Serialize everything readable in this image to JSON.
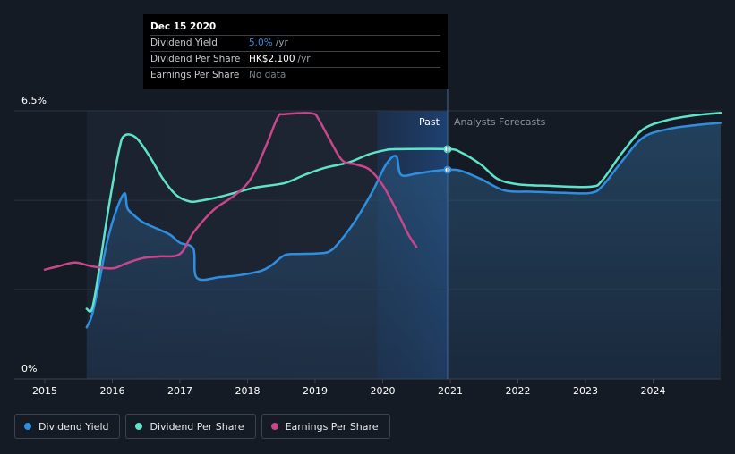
{
  "tooltip": {
    "date": "Dec 15 2020",
    "rows": [
      {
        "label": "Dividend Yield",
        "value": "5.0%",
        "unit": "/yr"
      },
      {
        "label": "Dividend Per Share",
        "value": "HK$2.100",
        "unit": "/yr"
      },
      {
        "label": "Earnings Per Share",
        "value": "No data",
        "unit": ""
      }
    ]
  },
  "legend": [
    {
      "label": "Dividend Yield",
      "color": "#2e8fe0"
    },
    {
      "label": "Dividend Per Share",
      "color": "#5fe3c8"
    },
    {
      "label": "Earnings Per Share",
      "color": "#c8468a"
    }
  ],
  "colors": {
    "background": "#151b24",
    "dividend_yield": "#2e8fe0",
    "dividend_per_share": "#5fe3c8",
    "earnings_per_share": "#c8468a"
  },
  "chart_data": {
    "type": "line",
    "title": "",
    "xlabel": "",
    "ylabel": "",
    "y_ticks": [
      {
        "value": 6.5,
        "label": "6.5%"
      },
      {
        "value": 0,
        "label": "0%"
      }
    ],
    "x_ticks": [
      "2015",
      "2016",
      "2017",
      "2018",
      "2019",
      "2020",
      "2021",
      "2022",
      "2023",
      "2024"
    ],
    "xlim": [
      2014.55,
      2025.0
    ],
    "ylim": [
      0,
      6.5
    ],
    "past_label": "Past",
    "forecast_label": "Analysts Forecasts",
    "past_end": 2020.96,
    "grid": true,
    "legend_position": "bottom-left",
    "series": [
      {
        "name": "Dividend Yield",
        "key": "dividend_yield",
        "fill": true,
        "points": [
          [
            2015.62,
            1.25
          ],
          [
            2015.7,
            1.55
          ],
          [
            2015.8,
            2.3
          ],
          [
            2015.92,
            3.3
          ],
          [
            2016.05,
            4.05
          ],
          [
            2016.18,
            4.5
          ],
          [
            2016.22,
            4.15
          ],
          [
            2016.3,
            4.0
          ],
          [
            2016.45,
            3.8
          ],
          [
            2016.65,
            3.65
          ],
          [
            2016.85,
            3.5
          ],
          [
            2017.0,
            3.3
          ],
          [
            2017.2,
            3.15
          ],
          [
            2017.25,
            2.45
          ],
          [
            2017.6,
            2.47
          ],
          [
            2017.9,
            2.52
          ],
          [
            2018.2,
            2.62
          ],
          [
            2018.35,
            2.75
          ],
          [
            2018.55,
            3.0
          ],
          [
            2018.75,
            3.03
          ],
          [
            2019.0,
            3.04
          ],
          [
            2019.2,
            3.08
          ],
          [
            2019.35,
            3.3
          ],
          [
            2019.6,
            3.85
          ],
          [
            2019.85,
            4.55
          ],
          [
            2020.05,
            5.2
          ],
          [
            2020.2,
            5.4
          ],
          [
            2020.27,
            4.95
          ],
          [
            2020.5,
            4.98
          ],
          [
            2020.75,
            5.04
          ],
          [
            2020.96,
            5.07
          ],
          [
            2021.15,
            5.05
          ],
          [
            2021.45,
            4.85
          ],
          [
            2021.8,
            4.57
          ],
          [
            2022.2,
            4.54
          ],
          [
            2022.7,
            4.51
          ],
          [
            2023.08,
            4.51
          ],
          [
            2023.25,
            4.68
          ],
          [
            2023.55,
            5.3
          ],
          [
            2023.85,
            5.85
          ],
          [
            2024.2,
            6.05
          ],
          [
            2024.6,
            6.15
          ],
          [
            2025.0,
            6.21
          ]
        ]
      },
      {
        "name": "Dividend Per Share",
        "key": "dividend_per_share",
        "fill": false,
        "points": [
          [
            2015.62,
            1.7
          ],
          [
            2015.7,
            1.7
          ],
          [
            2015.8,
            2.6
          ],
          [
            2015.95,
            4.2
          ],
          [
            2016.1,
            5.55
          ],
          [
            2016.18,
            5.9
          ],
          [
            2016.35,
            5.85
          ],
          [
            2016.55,
            5.4
          ],
          [
            2016.75,
            4.85
          ],
          [
            2016.95,
            4.45
          ],
          [
            2017.15,
            4.3
          ],
          [
            2017.3,
            4.32
          ],
          [
            2017.6,
            4.42
          ],
          [
            2017.9,
            4.55
          ],
          [
            2018.15,
            4.65
          ],
          [
            2018.55,
            4.75
          ],
          [
            2018.85,
            4.95
          ],
          [
            2019.15,
            5.12
          ],
          [
            2019.5,
            5.25
          ],
          [
            2019.8,
            5.45
          ],
          [
            2020.05,
            5.55
          ],
          [
            2020.2,
            5.57
          ],
          [
            2020.96,
            5.57
          ],
          [
            2021.15,
            5.5
          ],
          [
            2021.45,
            5.2
          ],
          [
            2021.7,
            4.85
          ],
          [
            2022.0,
            4.72
          ],
          [
            2022.5,
            4.68
          ],
          [
            2023.08,
            4.66
          ],
          [
            2023.25,
            4.82
          ],
          [
            2023.55,
            5.5
          ],
          [
            2023.85,
            6.05
          ],
          [
            2024.2,
            6.27
          ],
          [
            2024.6,
            6.39
          ],
          [
            2025.0,
            6.45
          ]
        ]
      },
      {
        "name": "Earnings Per Share",
        "key": "earnings_per_share",
        "fill": false,
        "points": [
          [
            2015.0,
            2.65
          ],
          [
            2015.2,
            2.73
          ],
          [
            2015.45,
            2.82
          ],
          [
            2015.7,
            2.73
          ],
          [
            2016.0,
            2.68
          ],
          [
            2016.2,
            2.8
          ],
          [
            2016.45,
            2.93
          ],
          [
            2016.7,
            2.97
          ],
          [
            2017.0,
            3.03
          ],
          [
            2017.2,
            3.55
          ],
          [
            2017.5,
            4.1
          ],
          [
            2017.75,
            4.38
          ],
          [
            2017.95,
            4.65
          ],
          [
            2018.1,
            5.0
          ],
          [
            2018.3,
            5.75
          ],
          [
            2018.45,
            6.35
          ],
          [
            2018.55,
            6.42
          ],
          [
            2018.95,
            6.44
          ],
          [
            2019.05,
            6.3
          ],
          [
            2019.2,
            5.85
          ],
          [
            2019.4,
            5.3
          ],
          [
            2019.6,
            5.2
          ],
          [
            2019.8,
            5.08
          ],
          [
            2020.0,
            4.7
          ],
          [
            2020.2,
            4.1
          ],
          [
            2020.38,
            3.5
          ],
          [
            2020.5,
            3.2
          ]
        ]
      }
    ]
  }
}
